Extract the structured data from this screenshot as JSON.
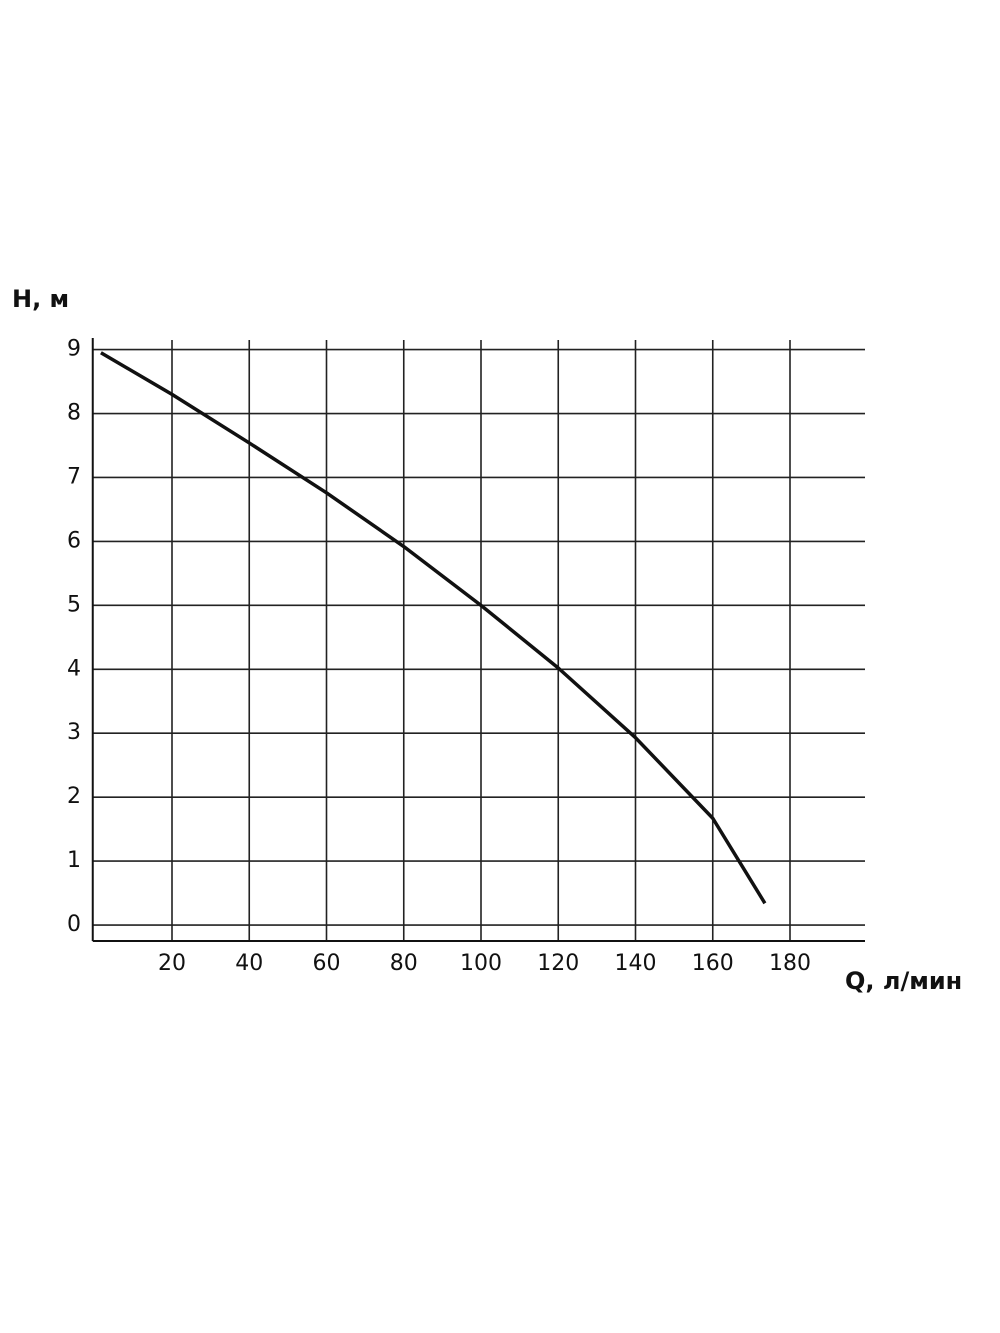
{
  "chart_data": {
    "type": "line",
    "x_label": "Q, л/мин",
    "y_label": "H, м",
    "x": [
      1.6,
      20,
      40,
      60,
      80,
      100,
      120,
      140,
      160,
      173.5
    ],
    "series": [
      {
        "color": "#111111",
        "values": [
          8.95,
          8.3,
          7.54,
          6.76,
          5.92,
          5.0,
          4.02,
          2.93,
          1.67,
          0.34
        ]
      }
    ],
    "xlim": [
      0,
      200
    ],
    "ylim": [
      -0.25,
      9.15
    ],
    "xticks": [
      20,
      40,
      60,
      80,
      100,
      120,
      140,
      160,
      180
    ],
    "yticks": [
      0,
      1,
      2,
      3,
      4,
      5,
      6,
      7,
      8,
      9
    ],
    "grid": true
  }
}
